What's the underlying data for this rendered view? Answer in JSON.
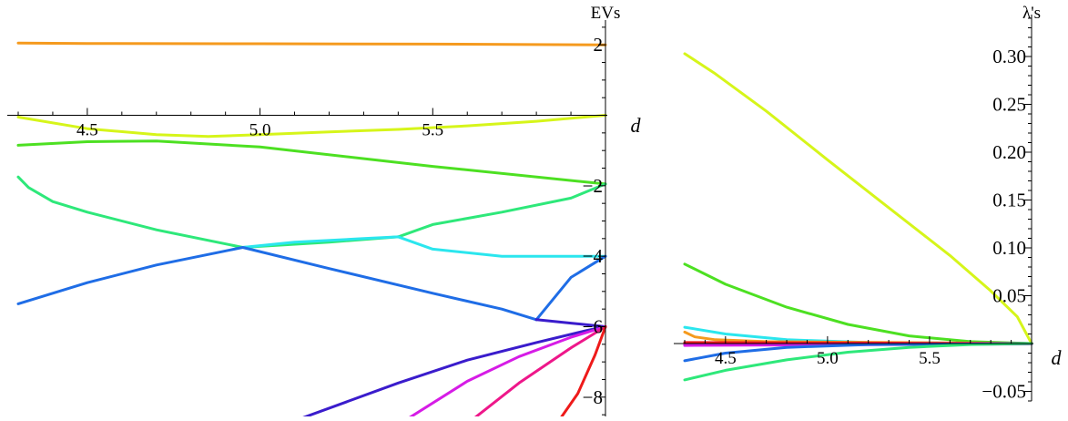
{
  "chart_data": [
    {
      "type": "line",
      "title": "",
      "xlabel": "d",
      "ylabel": "EVs",
      "xlim": [
        4.3,
        6.0
      ],
      "ylim": [
        -8.6,
        2.6
      ],
      "x_ticks": [
        4.5,
        5.0,
        5.5
      ],
      "x_tick_labels": [
        "4.5",
        "5.0",
        "5.5"
      ],
      "y_ticks": [
        2,
        -2,
        -4,
        -6,
        -8
      ],
      "y_tick_labels": [
        "2",
        "−2",
        "−4",
        "−6",
        "−8"
      ],
      "grid": false,
      "series": [
        {
          "color": "#f59a1e",
          "x": [
            4.3,
            4.5,
            5.0,
            5.5,
            6.0
          ],
          "y": [
            2.05,
            2.04,
            2.03,
            2.02,
            2.0
          ]
        },
        {
          "color": "#d6f51a",
          "x": [
            4.3,
            4.5,
            4.7,
            4.85,
            5.0,
            5.2,
            5.4,
            5.6,
            5.8,
            6.0
          ],
          "y": [
            -0.05,
            -0.38,
            -0.55,
            -0.6,
            -0.55,
            -0.47,
            -0.4,
            -0.3,
            -0.17,
            0.0
          ]
        },
        {
          "color": "#4de022",
          "x": [
            4.3,
            4.5,
            4.7,
            5.0,
            5.5,
            6.0
          ],
          "y": [
            -0.85,
            -0.75,
            -0.73,
            -0.9,
            -1.45,
            -1.95
          ]
        },
        {
          "color": "#2ee87a",
          "x": [
            4.3,
            4.33,
            4.4,
            4.5,
            4.7,
            4.95,
            5.2,
            5.4
          ],
          "y": [
            -1.75,
            -2.05,
            -2.45,
            -2.75,
            -3.25,
            -3.75,
            -3.6,
            -3.45
          ]
        },
        {
          "color": "#2ee87a",
          "x": [
            5.4,
            5.5,
            5.7,
            5.9,
            6.0
          ],
          "y": [
            -3.45,
            -3.1,
            -2.75,
            -2.35,
            -1.95
          ]
        },
        {
          "color": "#2be6ee",
          "x": [
            4.95,
            5.1,
            5.3,
            5.4
          ],
          "y": [
            -3.75,
            -3.6,
            -3.5,
            -3.45
          ]
        },
        {
          "color": "#2be6ee",
          "x": [
            5.4,
            5.5,
            5.7,
            5.9,
            6.0
          ],
          "y": [
            -3.45,
            -3.8,
            -4.0,
            -4.0,
            -4.0
          ]
        },
        {
          "color": "#1f6de6",
          "x": [
            4.3,
            4.5,
            4.7,
            4.95,
            5.2,
            5.5,
            5.7,
            5.8
          ],
          "y": [
            -5.35,
            -4.75,
            -4.25,
            -3.75,
            -4.35,
            -5.05,
            -5.5,
            -5.8
          ]
        },
        {
          "color": "#1f6de6",
          "x": [
            5.8,
            5.9,
            6.0
          ],
          "y": [
            -5.8,
            -4.6,
            -4.0
          ]
        },
        {
          "color": "#3a1ccc",
          "x": [
            5.8,
            5.9,
            6.0
          ],
          "y": [
            -5.8,
            -5.9,
            -6.0
          ]
        },
        {
          "color": "#3a1ccc",
          "x": [
            5.12,
            5.4,
            5.6,
            5.8,
            5.95,
            6.0
          ],
          "y": [
            -8.6,
            -7.6,
            -6.95,
            -6.45,
            -6.1,
            -6.0
          ]
        },
        {
          "color": "#d61ce6",
          "x": [
            5.43,
            5.6,
            5.75,
            5.9,
            6.0
          ],
          "y": [
            -8.6,
            -7.55,
            -6.85,
            -6.3,
            -6.0
          ]
        },
        {
          "color": "#ee178a",
          "x": [
            5.62,
            5.75,
            5.9,
            6.0
          ],
          "y": [
            -8.6,
            -7.6,
            -6.6,
            -6.0
          ]
        },
        {
          "color": "#ee1a1a",
          "x": [
            5.87,
            5.92,
            5.97,
            6.0
          ],
          "y": [
            -8.6,
            -7.9,
            -6.8,
            -6.0
          ]
        }
      ]
    },
    {
      "type": "line",
      "title": "",
      "xlabel": "d",
      "ylabel": "λ's",
      "xlim": [
        4.3,
        6.0
      ],
      "ylim": [
        -0.06,
        0.34
      ],
      "x_ticks": [
        4.5,
        5.0,
        5.5
      ],
      "x_tick_labels": [
        "4.5",
        "5.0",
        "5.5"
      ],
      "y_ticks": [
        0.3,
        0.25,
        0.2,
        0.15,
        0.1,
        0.05,
        -0.05
      ],
      "y_tick_labels": [
        "0.30",
        "0.25",
        "0.20",
        "0.15",
        "0.10",
        "0.05",
        "−0.05"
      ],
      "grid": false,
      "series": [
        {
          "color": "#d6f51a",
          "x": [
            4.3,
            4.45,
            4.7,
            5.0,
            5.3,
            5.6,
            5.8,
            5.93,
            6.0
          ],
          "y": [
            0.303,
            0.282,
            0.243,
            0.192,
            0.142,
            0.092,
            0.055,
            0.028,
            0.0
          ]
        },
        {
          "color": "#4de022",
          "x": [
            4.3,
            4.5,
            4.8,
            5.1,
            5.4,
            5.7,
            6.0
          ],
          "y": [
            0.083,
            0.062,
            0.038,
            0.02,
            0.008,
            0.002,
            0.0
          ]
        },
        {
          "color": "#2be6ee",
          "x": [
            4.3,
            4.5,
            4.8,
            5.2,
            6.0
          ],
          "y": [
            0.017,
            0.01,
            0.004,
            0.001,
            0.0
          ]
        },
        {
          "color": "#f59a1e",
          "x": [
            4.3,
            4.35,
            4.45,
            4.7,
            6.0
          ],
          "y": [
            0.012,
            0.007,
            0.004,
            0.002,
            0.0
          ]
        },
        {
          "color": "#ee1a1a",
          "x": [
            4.3,
            6.0
          ],
          "y": [
            0.001,
            0.0
          ]
        },
        {
          "color": "#ee178a",
          "x": [
            4.3,
            6.0
          ],
          "y": [
            -0.001,
            0.0
          ]
        },
        {
          "color": "#d61ce6",
          "x": [
            4.3,
            6.0
          ],
          "y": [
            -0.002,
            -0.0005
          ]
        },
        {
          "color": "#1f6de6",
          "x": [
            4.3,
            4.5,
            4.8,
            5.2,
            6.0
          ],
          "y": [
            -0.018,
            -0.01,
            -0.004,
            -0.001,
            0.0
          ]
        },
        {
          "color": "#2ee87a",
          "x": [
            4.3,
            4.5,
            4.8,
            5.1,
            5.4,
            5.7,
            6.0
          ],
          "y": [
            -0.038,
            -0.028,
            -0.017,
            -0.009,
            -0.004,
            -0.001,
            0.0
          ]
        }
      ]
    }
  ]
}
